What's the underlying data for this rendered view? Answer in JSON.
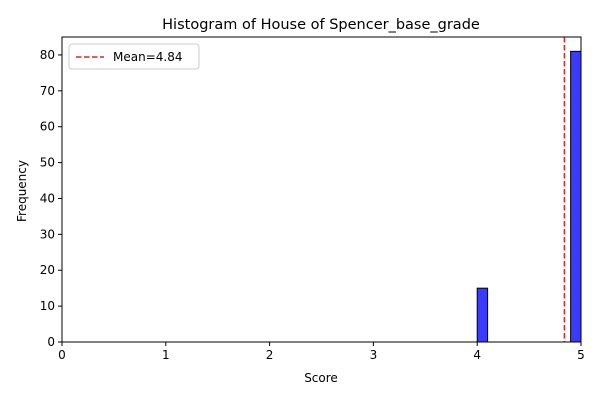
{
  "chart_data": {
    "type": "bar",
    "title": "Histogram of House of Spencer_base_grade",
    "xlabel": "Score",
    "ylabel": "Frequency",
    "xlim": [
      0,
      5
    ],
    "ylim": [
      0,
      85
    ],
    "x_ticks": [
      0,
      1,
      2,
      3,
      4,
      5
    ],
    "y_ticks": [
      0,
      10,
      20,
      30,
      40,
      50,
      60,
      70,
      80
    ],
    "bin_width": 0.1,
    "bins": [
      {
        "start": 4.0,
        "end": 4.1,
        "count": 15
      },
      {
        "start": 4.9,
        "end": 5.0,
        "count": 81
      }
    ],
    "mean_line": {
      "value": 4.84,
      "label": "Mean=4.84",
      "color": "#d62728",
      "style": "dashed"
    },
    "bar_color": "#3b3bff",
    "grid": false,
    "legend": {
      "position": "top-left",
      "entries": [
        "Mean=4.84"
      ]
    }
  }
}
